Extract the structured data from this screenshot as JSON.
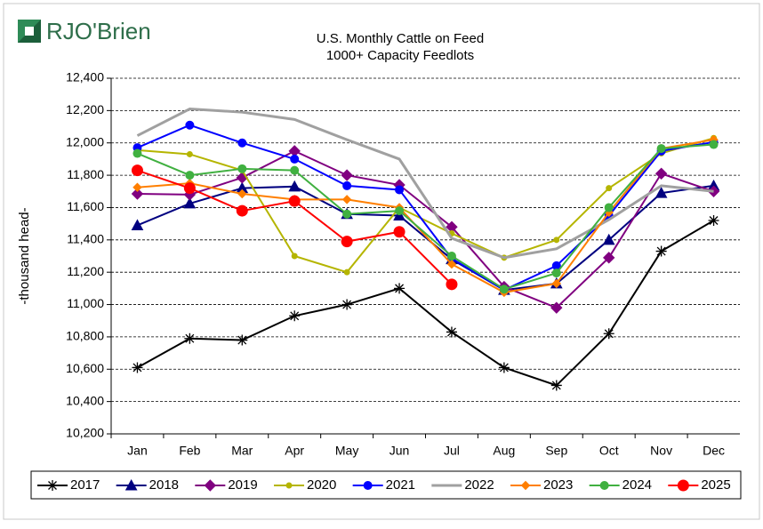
{
  "logo": "RJO'Brien",
  "chart_data": {
    "type": "line",
    "title": "U.S. Monthly Cattle on Feed",
    "subtitle": "1000+ Capacity Feedlots",
    "y_label": "-thousand head-",
    "categories": [
      "Jan",
      "Feb",
      "Mar",
      "Apr",
      "May",
      "Jun",
      "Jul",
      "Aug",
      "Sep",
      "Oct",
      "Nov",
      "Dec"
    ],
    "ylim": [
      10200,
      12400
    ],
    "yticks": [
      {
        "value": 10200,
        "label": "10,200"
      },
      {
        "value": 10400,
        "label": "10,400"
      },
      {
        "value": 10600,
        "label": "10,600"
      },
      {
        "value": 10800,
        "label": "10,800"
      },
      {
        "value": 11000,
        "label": "11,000"
      },
      {
        "value": 11200,
        "label": "11,200"
      },
      {
        "value": 11400,
        "label": "11,400"
      },
      {
        "value": 11600,
        "label": "11,600"
      },
      {
        "value": 11800,
        "label": "11,800"
      },
      {
        "value": 12000,
        "label": "12,000"
      },
      {
        "value": 12200,
        "label": "12,200"
      },
      {
        "value": 12400,
        "label": "12,400"
      }
    ],
    "grid": true,
    "legend": "bottom",
    "series": [
      {
        "name": "2017",
        "color": "#000000",
        "marker": "star",
        "values": [
          10610,
          10790,
          10780,
          10930,
          11000,
          11100,
          10830,
          10610,
          10500,
          10820,
          11330,
          11520
        ]
      },
      {
        "name": "2018",
        "color": "#000080",
        "marker": "triangle",
        "values": [
          11490,
          11625,
          11720,
          11730,
          11560,
          11550,
          11280,
          11090,
          11130,
          11400,
          11690,
          11735
        ]
      },
      {
        "name": "2019",
        "color": "#800080",
        "marker": "diamond",
        "values": [
          11685,
          11680,
          11785,
          11950,
          11800,
          11740,
          11480,
          11110,
          10980,
          11290,
          11810,
          11700
        ]
      },
      {
        "name": "2020",
        "color": "#b5b500",
        "marker": "dot",
        "values": [
          11955,
          11930,
          11830,
          11300,
          11200,
          11600,
          11440,
          11290,
          11400,
          11720,
          11935,
          12030
        ]
      },
      {
        "name": "2021",
        "color": "#0000ff",
        "marker": "circle",
        "values": [
          11970,
          12110,
          12000,
          11900,
          11735,
          11710,
          11285,
          11090,
          11240,
          11550,
          11950,
          12005
        ]
      },
      {
        "name": "2022",
        "color": "#a0a0a0",
        "marker": "none",
        "values": [
          12045,
          12210,
          12190,
          12145,
          12020,
          11900,
          11410,
          11290,
          11345,
          11525,
          11735,
          11700
        ]
      },
      {
        "name": "2023",
        "color": "#ff7f00",
        "marker": "smalldiamond",
        "values": [
          11725,
          11750,
          11685,
          11650,
          11650,
          11600,
          11250,
          11075,
          11130,
          11570,
          11965,
          12020
        ]
      },
      {
        "name": "2024",
        "color": "#40b040",
        "marker": "circle",
        "values": [
          11935,
          11800,
          11840,
          11830,
          11560,
          11580,
          11300,
          11095,
          11195,
          11600,
          11965,
          11990
        ]
      },
      {
        "name": "2025",
        "color": "#ff0000",
        "marker": "bigcircle",
        "values": [
          11830,
          11720,
          11580,
          11640,
          11390,
          11450,
          11125,
          null,
          null,
          null,
          null,
          null
        ]
      }
    ]
  }
}
